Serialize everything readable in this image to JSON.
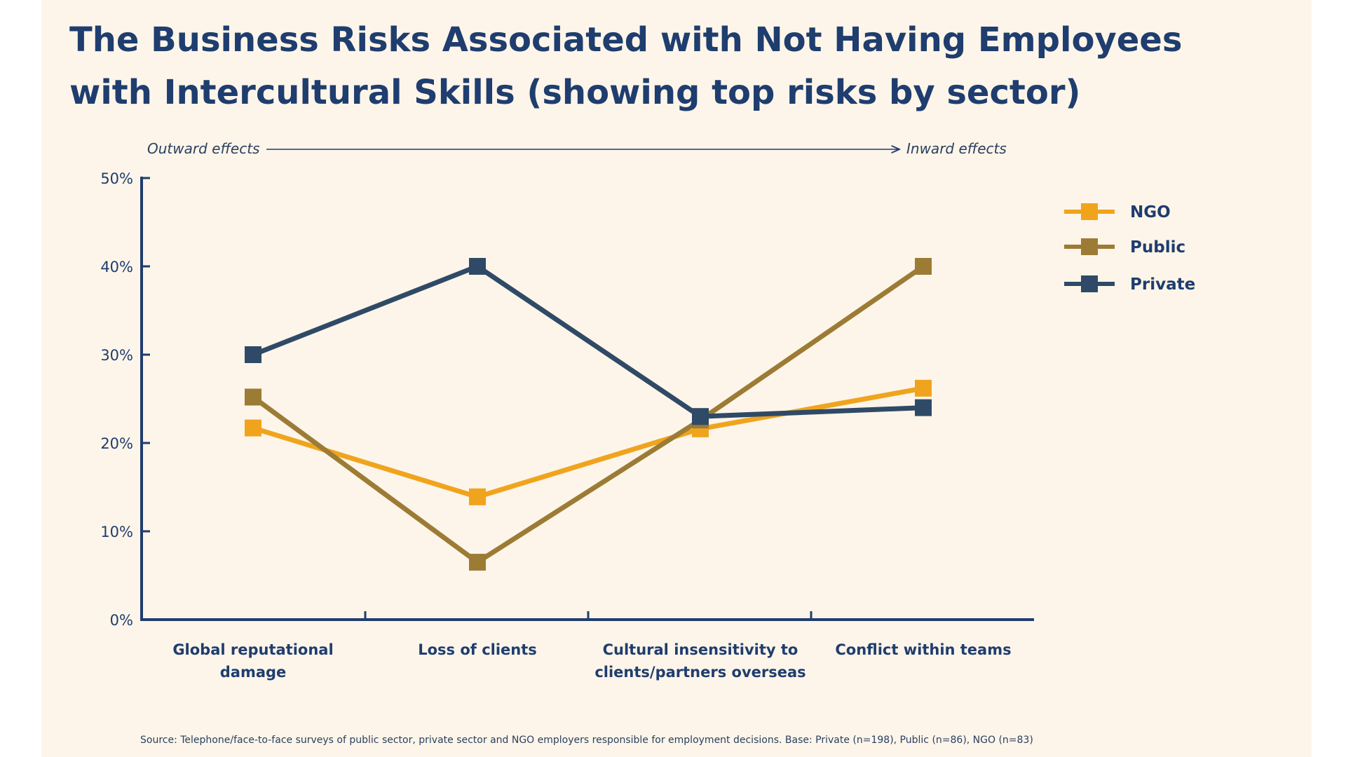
{
  "title": "The Business Risks Associated with Not Having Employees with Intercultural Skills (showing top risks by sector)",
  "direction": {
    "left_label": "Outward effects",
    "right_label": "Inward effects"
  },
  "source": "Source: Telephone/face-to-face surveys of public sector, private sector and NGO employers responsible for employment decisions. Base: Private (n=198), Public (n=86), NGO (n=83)",
  "colors": {
    "axis": "#1f3d6e",
    "text": "#1f3d6e",
    "background": "#fdf5e9"
  },
  "chart_data": {
    "type": "line",
    "categories": [
      [
        "Global reputational",
        "damage"
      ],
      [
        "Loss of clients"
      ],
      [
        "Cultural insensitivity to",
        "clients/partners overseas"
      ],
      [
        "Conflict within teams"
      ]
    ],
    "ylim": [
      0,
      50
    ],
    "yticks": [
      "0%",
      "10%",
      "20%",
      "30%",
      "40%",
      "50%"
    ],
    "ytick_values": [
      0,
      10,
      20,
      30,
      40,
      50
    ],
    "legend_position": "top-right",
    "grid": false,
    "series": [
      {
        "name": "NGO",
        "color": "#f0a41e",
        "values": [
          21.7,
          13.9,
          21.6,
          26.2
        ]
      },
      {
        "name": "Public",
        "color": "#9c7b35",
        "values": [
          25.2,
          6.5,
          22.6,
          40.0
        ]
      },
      {
        "name": "Private",
        "color": "#2f4a66",
        "values": [
          30.0,
          40.0,
          23.0,
          24.0
        ]
      }
    ]
  }
}
